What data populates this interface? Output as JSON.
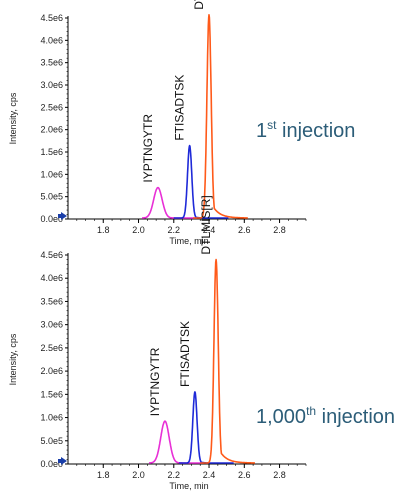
{
  "chart_data": [
    {
      "type": "line",
      "annotation": {
        "main": "1",
        "sup": "st",
        "rest": " injection"
      },
      "xlabel": "Time, min",
      "ylabel": "Intensity, cps",
      "xlim": [
        1.6,
        2.95
      ],
      "ylim": [
        0,
        4.5
      ],
      "x_ticks": [
        {
          "value": 1.8,
          "label": "1.8"
        },
        {
          "value": 2.0,
          "label": "2.0"
        },
        {
          "value": 2.2,
          "label": "2.2"
        },
        {
          "value": 2.4,
          "label": "2.4"
        },
        {
          "value": 2.6,
          "label": "2.6"
        },
        {
          "value": 2.8,
          "label": "2.8"
        }
      ],
      "y_ticks": [
        {
          "value": 0,
          "label": "0.0e0"
        },
        {
          "value": 0.5,
          "label": "5.0e5"
        },
        {
          "value": 1.0,
          "label": "1.0e6"
        },
        {
          "value": 1.5,
          "label": "1.5e6"
        },
        {
          "value": 2.0,
          "label": "2.0e6"
        },
        {
          "value": 2.5,
          "label": "2.5e6"
        },
        {
          "value": 3.0,
          "label": "3.0e6"
        },
        {
          "value": 3.5,
          "label": "3.5e6"
        },
        {
          "value": 4.0,
          "label": "4.0e6"
        },
        {
          "value": 4.5,
          "label": "4.5e6"
        }
      ],
      "series": [
        {
          "name": "IYPTNGYTR",
          "color": "#e830d6",
          "peak_time": 2.11,
          "peak_intensity": 0.68,
          "width": 0.024,
          "tail": 0.022
        },
        {
          "name": "FTISADTSK",
          "color": "#1f2ad8",
          "peak_time": 2.29,
          "peak_intensity": 1.62,
          "width": 0.012,
          "tail": 0.016
        },
        {
          "name": "DTLMIS[R]",
          "color": "#ff5a1a",
          "peak_time": 2.4,
          "peak_intensity": 4.55,
          "width": 0.012,
          "tail": 0.04
        }
      ]
    },
    {
      "type": "line",
      "annotation": {
        "main": "1,000",
        "sup": "th",
        "rest": " injection"
      },
      "xlabel": "Time, min",
      "ylabel": "Intensity, cps",
      "xlim": [
        1.6,
        2.95
      ],
      "ylim": [
        0,
        4.5
      ],
      "x_ticks": [
        {
          "value": 1.8,
          "label": "1.8"
        },
        {
          "value": 2.0,
          "label": "2.0"
        },
        {
          "value": 2.2,
          "label": "2.2"
        },
        {
          "value": 2.4,
          "label": "2.4"
        },
        {
          "value": 2.6,
          "label": "2.6"
        },
        {
          "value": 2.8,
          "label": "2.8"
        }
      ],
      "y_ticks": [
        {
          "value": 0,
          "label": "0.0e0"
        },
        {
          "value": 0.5,
          "label": "5.0e5"
        },
        {
          "value": 1.0,
          "label": "1.0e6"
        },
        {
          "value": 1.5,
          "label": "1.5e6"
        },
        {
          "value": 2.0,
          "label": "2.0e6"
        },
        {
          "value": 2.5,
          "label": "2.5e6"
        },
        {
          "value": 3.0,
          "label": "3.0e6"
        },
        {
          "value": 3.5,
          "label": "3.5e6"
        },
        {
          "value": 4.0,
          "label": "4.0e6"
        },
        {
          "value": 4.5,
          "label": "4.5e6"
        }
      ],
      "series": [
        {
          "name": "IYPTNGYTR",
          "color": "#e830d6",
          "peak_time": 2.15,
          "peak_intensity": 0.9,
          "width": 0.024,
          "tail": 0.022
        },
        {
          "name": "FTISADTSK",
          "color": "#1f2ad8",
          "peak_time": 2.32,
          "peak_intensity": 1.53,
          "width": 0.012,
          "tail": 0.016
        },
        {
          "name": "DTLMIS[R]",
          "color": "#ff5a1a",
          "peak_time": 2.44,
          "peak_intensity": 4.38,
          "width": 0.012,
          "tail": 0.04
        }
      ]
    }
  ]
}
